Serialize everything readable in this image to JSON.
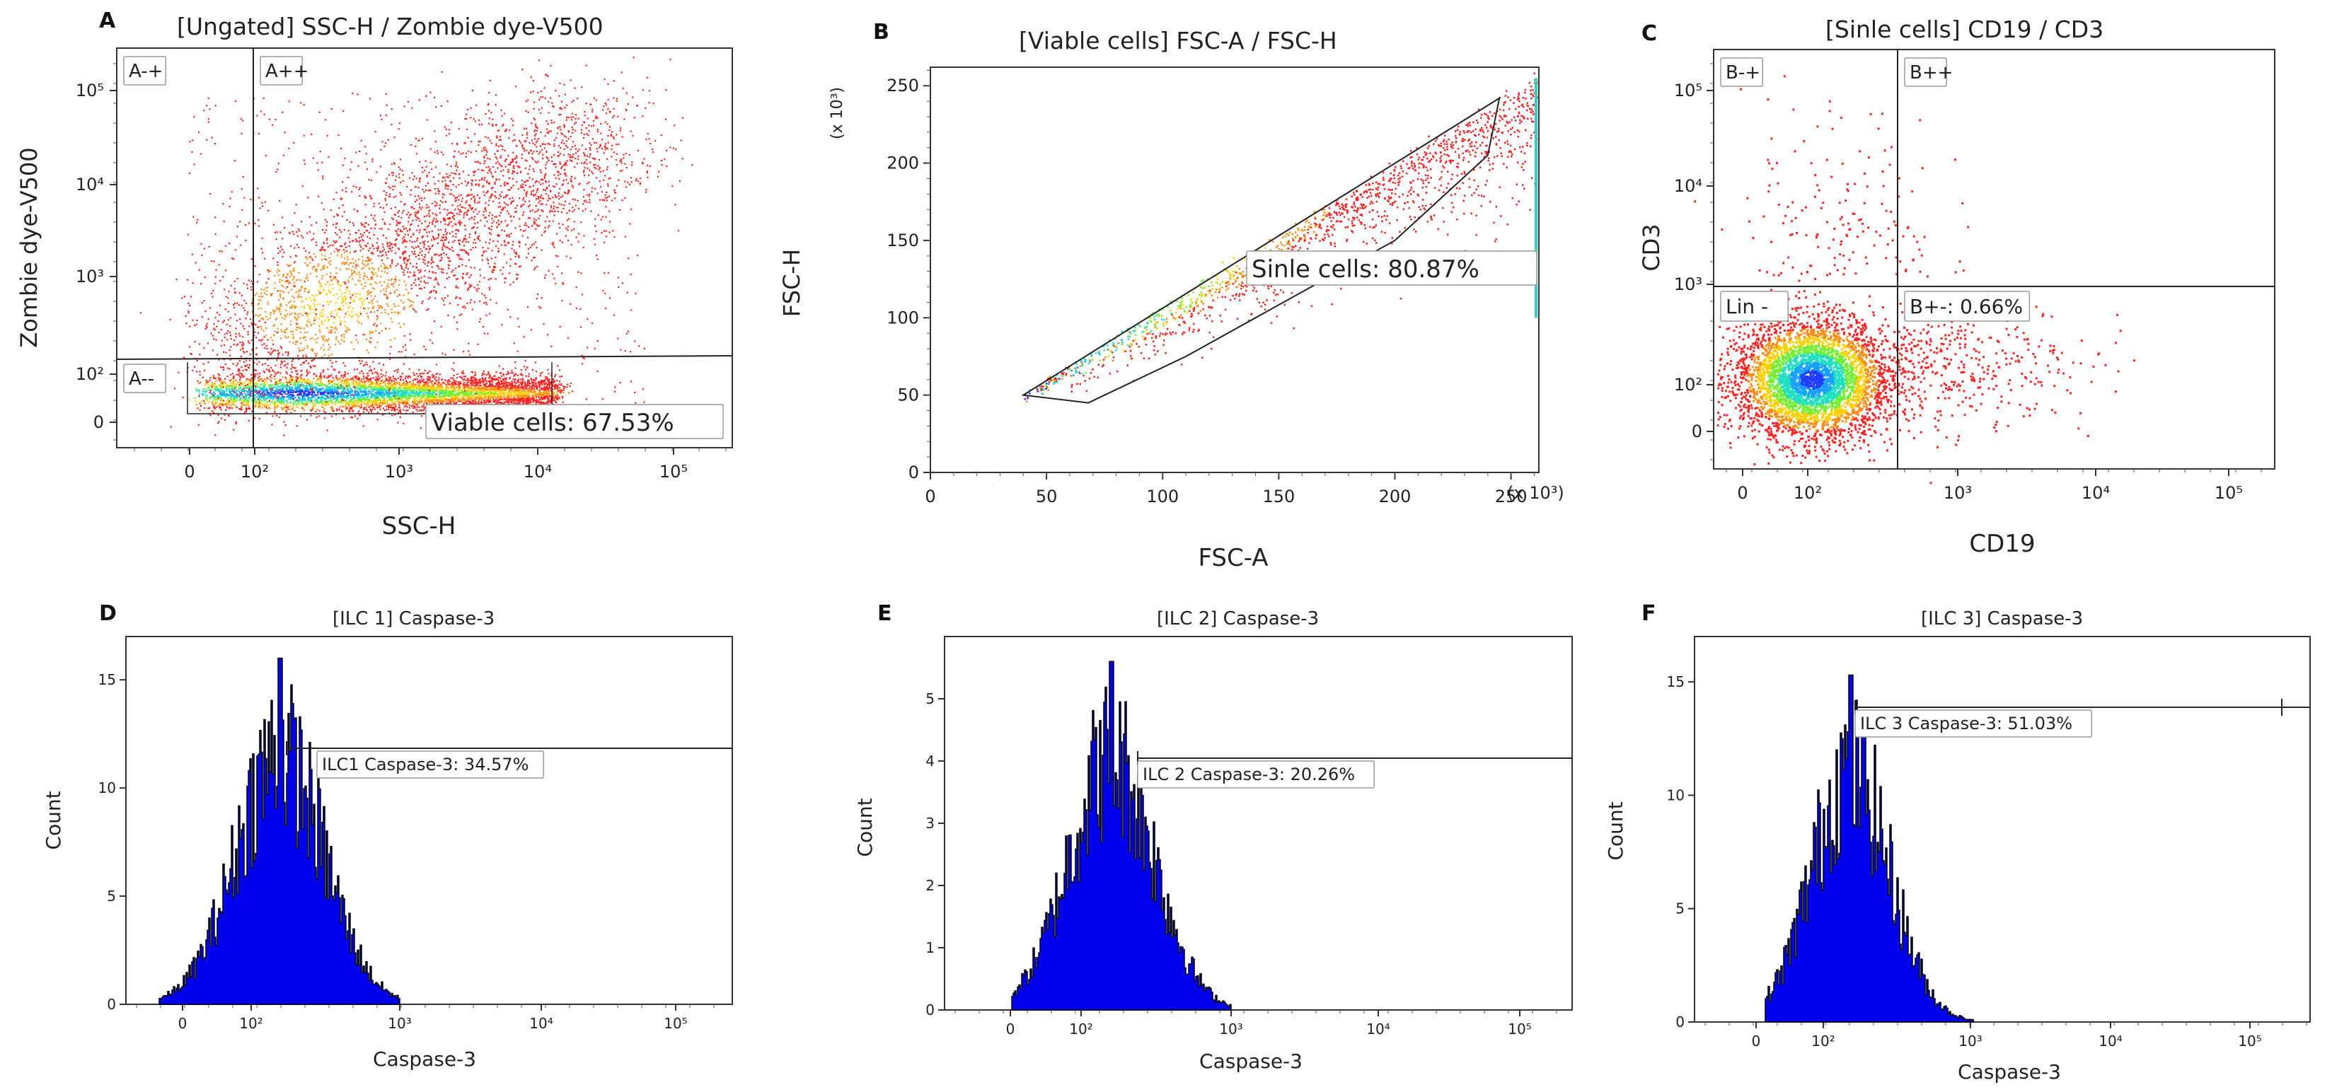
{
  "figure": {
    "panels": [
      {
        "letter": "A",
        "title": "[Ungated] SSC-H / Zombie dye-V500"
      },
      {
        "letter": "B",
        "title": "[Viable cells] FSC-A / FSC-H"
      },
      {
        "letter": "C",
        "title": "[Sinle cells] CD19 / CD3"
      },
      {
        "letter": "D",
        "title": "[ILC 1] Caspase-3"
      },
      {
        "letter": "E",
        "title": "[ILC 2] Caspase-3"
      },
      {
        "letter": "F",
        "title": "[ILC 3] Caspase-3"
      }
    ]
  },
  "colors": {
    "density_low": "#ff2020",
    "density_mid": "#ffd000",
    "density_high": "#18a0ff",
    "histogram_fill": "#0000ee",
    "histogram_line": "#000000"
  },
  "chart_data": [
    {
      "panel": "A",
      "type": "scatter",
      "subtype": "density-dot-plot",
      "title": "[Ungated] SSC-H / Zombie dye-V500",
      "xlabel": "SSC-H",
      "ylabel": "Zombie dye-V500",
      "x_scale": "biexponential",
      "y_scale": "biexponential",
      "x_ticks": [
        "0",
        "10²",
        "10³",
        "10⁴",
        "10⁵"
      ],
      "y_ticks": [
        "0",
        "10²",
        "10³",
        "10⁴",
        "10⁵"
      ],
      "quadrants": [
        "A-+",
        "A++",
        "A--"
      ],
      "gates": [
        {
          "name": "Viable cells",
          "label": "Viable cells: 67.53%",
          "percent": 67.53
        }
      ]
    },
    {
      "panel": "B",
      "type": "scatter",
      "subtype": "density-dot-plot",
      "title": "[Viable cells] FSC-A / FSC-H",
      "xlabel": "FSC-A",
      "ylabel": "FSC-H",
      "x_ticks": [
        0,
        50,
        100,
        150,
        200,
        250
      ],
      "y_ticks": [
        0,
        50,
        100,
        150,
        200,
        250
      ],
      "x_multiplier": "(x 10³)",
      "y_multiplier": "(x 10³)",
      "xlim": [
        0,
        262
      ],
      "ylim": [
        0,
        262
      ],
      "gates": [
        {
          "name": "Sinle cells",
          "label": "Sinle cells: 80.87%",
          "percent": 80.87,
          "polygon": [
            [
              40,
              50
            ],
            [
              245,
              242
            ],
            [
              240,
              205
            ],
            [
              200,
              150
            ],
            [
              110,
              75
            ],
            [
              68,
              45
            ]
          ]
        }
      ]
    },
    {
      "panel": "C",
      "type": "scatter",
      "subtype": "density-dot-plot",
      "title": "[Sinle cells] CD19 / CD3",
      "xlabel": "CD19",
      "ylabel": "CD3",
      "x_scale": "biexponential",
      "y_scale": "biexponential",
      "x_ticks": [
        "0",
        "10²",
        "10³",
        "10⁴",
        "10⁵"
      ],
      "y_ticks": [
        "0",
        "10²",
        "10³",
        "10⁴",
        "10⁵"
      ],
      "quadrants": [
        "B-+",
        "B++",
        "Lin -",
        "B+-: 0.66%"
      ],
      "gates": [
        {
          "name": "B+-",
          "percent": 0.66
        }
      ]
    },
    {
      "panel": "D",
      "type": "area",
      "subtype": "histogram",
      "title": "[ILC 1] Caspase-3",
      "xlabel": "Caspase-3",
      "ylabel": "Count",
      "x_ticks": [
        "0",
        "10²",
        "10³",
        "10⁴",
        "10⁵"
      ],
      "y_ticks": [
        0,
        5,
        10,
        15
      ],
      "ylim": [
        0,
        17
      ],
      "peak": {
        "position_decade": 2.2,
        "height": 16
      },
      "gates": [
        {
          "label": "ILC1 Caspase-3: 34.57%",
          "percent": 34.57
        }
      ]
    },
    {
      "panel": "E",
      "type": "area",
      "subtype": "histogram",
      "title": "[ILC 2] Caspase-3",
      "xlabel": "Caspase-3",
      "ylabel": "Count",
      "x_ticks": [
        "0",
        "10²",
        "10³",
        "10⁴",
        "10⁵"
      ],
      "y_ticks": [
        0,
        1,
        2,
        3,
        4,
        5
      ],
      "ylim": [
        0,
        6
      ],
      "peak": {
        "position_decade": 2.2,
        "height": 5.6
      },
      "gates": [
        {
          "label": "ILC 2 Caspase-3: 20.26%",
          "percent": 20.26
        }
      ]
    },
    {
      "panel": "F",
      "type": "area",
      "subtype": "histogram",
      "title": "[ILC 3] Caspase-3",
      "xlabel": "Caspase-3",
      "ylabel": "Count",
      "x_ticks": [
        "0",
        "10²",
        "10³",
        "10⁴",
        "10⁵"
      ],
      "y_ticks": [
        0,
        5,
        10,
        15
      ],
      "ylim": [
        0,
        17
      ],
      "peak": {
        "position_decade": 2.2,
        "height": 15.3
      },
      "gates": [
        {
          "label": "ILC 3 Caspase-3: 51.03%",
          "percent": 51.03
        }
      ]
    }
  ]
}
